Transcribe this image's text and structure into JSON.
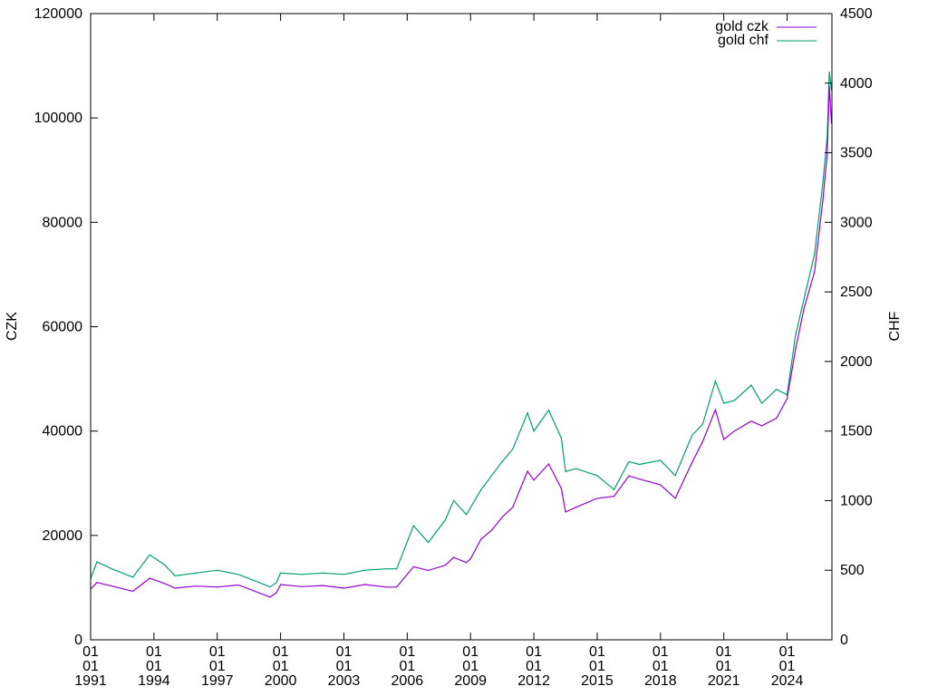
{
  "chart_data": {
    "type": "line",
    "title": "",
    "xlabel": "",
    "ylabel": "CZK",
    "y2label": "CHF",
    "xlim": [
      "1991-01-01",
      "2026-02-15"
    ],
    "ylim": [
      0,
      120000
    ],
    "y2lim": [
      0,
      4500
    ],
    "grid": false,
    "legend": "top-right",
    "x_ticks": [
      {
        "value": "1991-01-01",
        "lines": [
          "01",
          "01",
          "1991"
        ]
      },
      {
        "value": "1994-01-01",
        "lines": [
          "01",
          "01",
          "1994"
        ]
      },
      {
        "value": "1997-01-01",
        "lines": [
          "01",
          "01",
          "1997"
        ]
      },
      {
        "value": "2000-01-01",
        "lines": [
          "01",
          "01",
          "2000"
        ]
      },
      {
        "value": "2003-01-01",
        "lines": [
          "01",
          "01",
          "2003"
        ]
      },
      {
        "value": "2006-01-01",
        "lines": [
          "01",
          "01",
          "2006"
        ]
      },
      {
        "value": "2009-01-01",
        "lines": [
          "01",
          "01",
          "2009"
        ]
      },
      {
        "value": "2012-01-01",
        "lines": [
          "01",
          "01",
          "2012"
        ]
      },
      {
        "value": "2015-01-01",
        "lines": [
          "01",
          "01",
          "2015"
        ]
      },
      {
        "value": "2018-01-01",
        "lines": [
          "01",
          "01",
          "2018"
        ]
      },
      {
        "value": "2021-01-01",
        "lines": [
          "01",
          "01",
          "2021"
        ]
      },
      {
        "value": "2024-01-01",
        "lines": [
          "01",
          "01",
          "2024"
        ]
      }
    ],
    "y_ticks": [
      "0",
      "20000",
      "40000",
      "60000",
      "80000",
      "100000",
      "120000"
    ],
    "y2_ticks": [
      "0",
      "500",
      "1000",
      "1500",
      "2000",
      "2500",
      "3000",
      "3500",
      "4000",
      "4500"
    ],
    "series": [
      {
        "name": "gold czk",
        "axis": "y",
        "color": "#9400d3",
        "x": [
          1991.0,
          1991.3,
          1992.0,
          1993.0,
          1993.8,
          1994.5,
          1995.0,
          1996.0,
          1997.0,
          1998.0,
          1999.5,
          1999.8,
          2000.0,
          2001.0,
          2002.0,
          2003.0,
          2004.0,
          2005.0,
          2005.5,
          2006.3,
          2007.0,
          2007.8,
          2008.2,
          2008.8,
          2009.0,
          2009.5,
          2010.0,
          2010.5,
          2011.0,
          2011.7,
          2012.0,
          2012.7,
          2013.3,
          2013.5,
          2014.0,
          2015.0,
          2015.8,
          2016.5,
          2017.0,
          2018.0,
          2018.7,
          2019.5,
          2020.0,
          2020.6,
          2021.0,
          2021.5,
          2022.3,
          2022.8,
          2023.5,
          2024.0,
          2024.4,
          2024.8,
          2025.3,
          2025.7,
          2025.9,
          2026.0,
          2026.1
        ],
        "values": [
          9700,
          11000,
          10300,
          9300,
          11800,
          10800,
          9900,
          10300,
          10100,
          10500,
          8200,
          9000,
          10600,
          10200,
          10400,
          9900,
          10600,
          10100,
          10100,
          14000,
          13300,
          14300,
          15800,
          14800,
          15500,
          19300,
          21000,
          23500,
          25400,
          32300,
          30600,
          33700,
          29000,
          24500,
          25400,
          27100,
          27500,
          31400,
          30800,
          29700,
          27100,
          34000,
          38000,
          44100,
          38400,
          40000,
          41900,
          41000,
          42500,
          46200,
          55700,
          63500,
          70500,
          84400,
          93100,
          106100,
          99000
        ]
      },
      {
        "name": "gold chf",
        "axis": "y2",
        "color": "#009e73",
        "x": [
          1991.0,
          1991.3,
          1992.0,
          1993.0,
          1993.8,
          1994.5,
          1995.0,
          1996.0,
          1997.0,
          1998.0,
          1999.5,
          1999.8,
          2000.0,
          2001.0,
          2002.0,
          2003.0,
          2004.0,
          2005.0,
          2005.5,
          2006.3,
          2007.0,
          2007.8,
          2008.2,
          2008.8,
          2009.0,
          2009.5,
          2010.0,
          2010.5,
          2011.0,
          2011.7,
          2012.0,
          2012.7,
          2013.3,
          2013.5,
          2014.0,
          2015.0,
          2015.8,
          2016.5,
          2017.0,
          2018.0,
          2018.7,
          2019.5,
          2020.0,
          2020.6,
          2021.0,
          2021.5,
          2022.3,
          2022.8,
          2023.5,
          2024.0,
          2024.4,
          2024.8,
          2025.3,
          2025.7,
          2025.9,
          2026.0,
          2026.1
        ],
        "values": [
          440,
          560,
          510,
          450,
          610,
          540,
          460,
          480,
          500,
          470,
          380,
          410,
          480,
          470,
          480,
          470,
          500,
          510,
          510,
          820,
          700,
          860,
          1000,
          900,
          950,
          1080,
          1180,
          1280,
          1370,
          1630,
          1500,
          1650,
          1450,
          1210,
          1230,
          1180,
          1080,
          1280,
          1260,
          1290,
          1180,
          1470,
          1550,
          1860,
          1700,
          1720,
          1830,
          1700,
          1800,
          1760,
          2190,
          2450,
          2770,
          3290,
          3620,
          4080,
          3950
        ]
      }
    ]
  }
}
